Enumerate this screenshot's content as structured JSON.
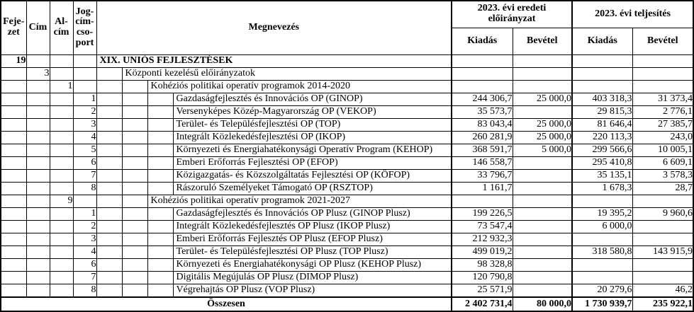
{
  "colors": {
    "background": "#ffffff",
    "border": "#000000",
    "text": "#000000"
  },
  "table": {
    "columns": {
      "fejezet": "Feje-\nzet",
      "cim": "Cím",
      "alcim": "Al-\ncím",
      "jogcim": "Jog-\ncím-\ncso-\nport",
      "megnevezes": "Megnevezés",
      "group_original": "2023. évi eredeti\nelőirányzat",
      "group_actual": "2023. évi teljesítés",
      "kiadas": "Kiadás",
      "bevetel": "Bevétel"
    },
    "rows": [
      {
        "fejezet": "19",
        "cim": "",
        "alcim": "",
        "jogcim": "",
        "indent": 0,
        "bold": true,
        "name": "XIX. UNIÓS FEJLESZTÉSEK",
        "e_kiadas": "",
        "e_bevetel": "",
        "t_kiadas": "",
        "t_bevetel": ""
      },
      {
        "fejezet": "",
        "cim": "3",
        "alcim": "",
        "jogcim": "",
        "indent": 1,
        "bold": false,
        "name": "Központi kezelésű előirányzatok",
        "e_kiadas": "",
        "e_bevetel": "",
        "t_kiadas": "",
        "t_bevetel": ""
      },
      {
        "fejezet": "",
        "cim": "",
        "alcim": "1",
        "jogcim": "",
        "indent": 2,
        "bold": false,
        "name": "Kohéziós politikai operatív programok 2014-2020",
        "e_kiadas": "",
        "e_bevetel": "",
        "t_kiadas": "",
        "t_bevetel": ""
      },
      {
        "fejezet": "",
        "cim": "",
        "alcim": "",
        "jogcim": "1",
        "indent": 3,
        "bold": false,
        "name": "Gazdaságfejlesztés és Innovációs OP (GINOP)",
        "e_kiadas": "244 306,7",
        "e_bevetel": "25 000,0",
        "t_kiadas": "403 318,3",
        "t_bevetel": "31 373,4"
      },
      {
        "fejezet": "",
        "cim": "",
        "alcim": "",
        "jogcim": "2",
        "indent": 3,
        "bold": false,
        "name": "Versenyképes Közép-Magyarország OP (VEKOP)",
        "e_kiadas": "35 573,7",
        "e_bevetel": "",
        "t_kiadas": "29 815,3",
        "t_bevetel": "2 776,1"
      },
      {
        "fejezet": "",
        "cim": "",
        "alcim": "",
        "jogcim": "3",
        "indent": 3,
        "bold": false,
        "name": "Terület- és Településfejlesztési OP (TOP)",
        "e_kiadas": "83 043,4",
        "e_bevetel": "25 000,0",
        "t_kiadas": "81 646,4",
        "t_bevetel": "27 385,7"
      },
      {
        "fejezet": "",
        "cim": "",
        "alcim": "",
        "jogcim": "4",
        "indent": 3,
        "bold": false,
        "name": "Integrált Közlekedésfejlesztési OP (IKOP)",
        "e_kiadas": "260 281,9",
        "e_bevetel": "25 000,0",
        "t_kiadas": "220 113,3",
        "t_bevetel": "243,0"
      },
      {
        "fejezet": "",
        "cim": "",
        "alcim": "",
        "jogcim": "5",
        "indent": 3,
        "bold": false,
        "name": "Környezeti és Energiahatékonysági Operatív Program (KEHOP)",
        "e_kiadas": "368 591,7",
        "e_bevetel": "5 000,0",
        "t_kiadas": "299 566,6",
        "t_bevetel": "10 005,1"
      },
      {
        "fejezet": "",
        "cim": "",
        "alcim": "",
        "jogcim": "6",
        "indent": 3,
        "bold": false,
        "name": "Emberi Erőforrás Fejlesztési OP (EFOP)",
        "e_kiadas": "146 558,7",
        "e_bevetel": "",
        "t_kiadas": "295 410,8",
        "t_bevetel": "6 609,1"
      },
      {
        "fejezet": "",
        "cim": "",
        "alcim": "",
        "jogcim": "7",
        "indent": 3,
        "bold": false,
        "name": "Közigazgatás- és Közszolgáltatás Fejlesztési OP (KÖFOP)",
        "e_kiadas": "33 796,7",
        "e_bevetel": "",
        "t_kiadas": "35 135,1",
        "t_bevetel": "3 578,3"
      },
      {
        "fejezet": "",
        "cim": "",
        "alcim": "",
        "jogcim": "8",
        "indent": 3,
        "bold": false,
        "name": "Rászoruló Személyeket Támogató OP (RSZTOP)",
        "e_kiadas": "1 161,7",
        "e_bevetel": "",
        "t_kiadas": "1 678,3",
        "t_bevetel": "28,7"
      },
      {
        "fejezet": "",
        "cim": "",
        "alcim": "9",
        "jogcim": "",
        "indent": 2,
        "bold": false,
        "name": "Kohéziós politikai operatív programok 2021-2027",
        "e_kiadas": "",
        "e_bevetel": "",
        "t_kiadas": "",
        "t_bevetel": ""
      },
      {
        "fejezet": "",
        "cim": "",
        "alcim": "",
        "jogcim": "1",
        "indent": 3,
        "bold": false,
        "name": "Gazdaságfejlesztés és Innovációs OP Plusz (GINOP Plusz)",
        "e_kiadas": "199 226,5",
        "e_bevetel": "",
        "t_kiadas": "19 395,2",
        "t_bevetel": "9 960,6"
      },
      {
        "fejezet": "",
        "cim": "",
        "alcim": "",
        "jogcim": "2",
        "indent": 3,
        "bold": false,
        "name": "Integrált Közlekedésfejlesztés OP Plusz (IKOP Plusz)",
        "e_kiadas": "73 547,4",
        "e_bevetel": "",
        "t_kiadas": "6 000,0",
        "t_bevetel": ""
      },
      {
        "fejezet": "",
        "cim": "",
        "alcim": "",
        "jogcim": "3",
        "indent": 3,
        "bold": false,
        "name": "Emberi Erőforrás Fejlesztés OP Plusz (EFOP Plusz)",
        "e_kiadas": "212 932,3",
        "e_bevetel": "",
        "t_kiadas": "",
        "t_bevetel": ""
      },
      {
        "fejezet": "",
        "cim": "",
        "alcim": "",
        "jogcim": "4",
        "indent": 3,
        "bold": false,
        "name": "Terület- és Településfejlesztési OP Plusz (TOP Plusz)",
        "e_kiadas": "499 019,2",
        "e_bevetel": "",
        "t_kiadas": "318 580,8",
        "t_bevetel": "143 915,9"
      },
      {
        "fejezet": "",
        "cim": "",
        "alcim": "",
        "jogcim": "6",
        "indent": 3,
        "bold": false,
        "name": "Környezeti és Energiahatékonysági OP Plusz (KEHOP Plusz)",
        "e_kiadas": "98 328,8",
        "e_bevetel": "",
        "t_kiadas": "",
        "t_bevetel": ""
      },
      {
        "fejezet": "",
        "cim": "",
        "alcim": "",
        "jogcim": "7",
        "indent": 3,
        "bold": false,
        "name": "Digitális Megújulás OP Plusz (DIMOP Plusz)",
        "e_kiadas": "120 790,8",
        "e_bevetel": "",
        "t_kiadas": "",
        "t_bevetel": ""
      },
      {
        "fejezet": "",
        "cim": "",
        "alcim": "",
        "jogcim": "8",
        "indent": 3,
        "bold": false,
        "name": "Végrehajtás OP Plusz (VOP Plusz)",
        "e_kiadas": "25 571,9",
        "e_bevetel": "",
        "t_kiadas": "20 279,6",
        "t_bevetel": "46,2"
      }
    ],
    "total": {
      "label": "Összesen",
      "e_kiadas": "2 402 731,4",
      "e_bevetel": "80 000,0",
      "t_kiadas": "1 730 939,7",
      "t_bevetel": "235 922,1"
    }
  }
}
